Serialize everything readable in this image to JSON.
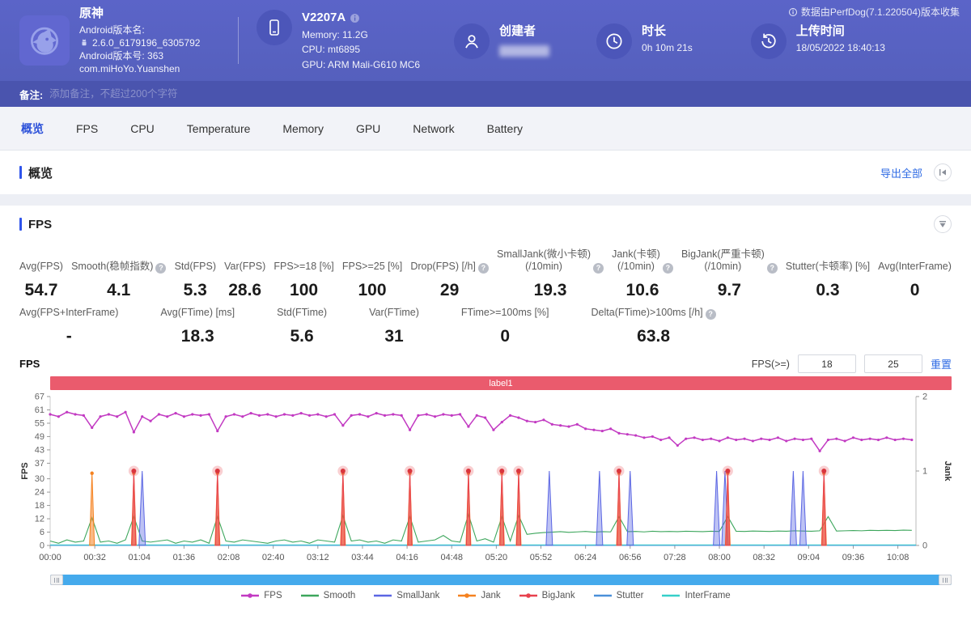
{
  "header": {
    "app": {
      "name": "原神",
      "version_label": "Android版本名:",
      "version_value": "2.6.0_6179196_6305792",
      "build_label": "Android版本号: 363",
      "package": "com.miHoYo.Yuanshen"
    },
    "device": {
      "model": "V2207A",
      "memory": "Memory: 11.2G",
      "cpu": "CPU: mt6895",
      "gpu": "GPU: ARM Mali-G610 MC6"
    },
    "creator": {
      "label": "创建者"
    },
    "duration": {
      "label": "时长",
      "value": "0h 10m 21s"
    },
    "upload": {
      "label": "上传时间",
      "value": "18/05/2022 18:40:13"
    },
    "collect_info": "数据由PerfDog(7.1.220504)版本收集"
  },
  "note_bar": {
    "label": "备注:",
    "placeholder": "添加备注，不超过200个字符"
  },
  "tabs": [
    "概览",
    "FPS",
    "CPU",
    "Temperature",
    "Memory",
    "GPU",
    "Network",
    "Battery"
  ],
  "active_tab": "概览",
  "overview": {
    "title": "概览",
    "export_label": "导出全部"
  },
  "fps_section": {
    "title": "FPS",
    "chart_label": "FPS",
    "threshold": {
      "label": "FPS(>=)",
      "input1": "18",
      "input2": "25",
      "reset": "重置"
    },
    "stats_row1": [
      {
        "label": "Avg(FPS)",
        "value": "54.7",
        "help": false
      },
      {
        "label": "Smooth(稳帧指数)",
        "value": "4.1",
        "help": true
      },
      {
        "label": "Std(FPS)",
        "value": "5.3",
        "help": false
      },
      {
        "label": "Var(FPS)",
        "value": "28.6",
        "help": false
      },
      {
        "label": "FPS>=18 [%]",
        "value": "100",
        "help": false
      },
      {
        "label": "FPS>=25 [%]",
        "value": "100",
        "help": false
      },
      {
        "label": "Drop(FPS) [/h]",
        "value": "29",
        "help": true
      },
      {
        "label": "SmallJank(微小卡顿)\n(/10min)",
        "value": "19.3",
        "help": true
      },
      {
        "label": "Jank(卡顿)\n(/10min)",
        "value": "10.6",
        "help": true
      },
      {
        "label": "BigJank(严重卡顿)\n(/10min)",
        "value": "9.7",
        "help": true
      },
      {
        "label": "Stutter(卡顿率) [%]",
        "value": "0.3",
        "help": false
      },
      {
        "label": "Avg(InterFrame)",
        "value": "0",
        "help": false
      }
    ],
    "stats_row2": [
      {
        "label": "Avg(FPS+InterFrame)",
        "value": "-",
        "help": false
      },
      {
        "label": "Avg(FTime) [ms]",
        "value": "18.3",
        "help": false
      },
      {
        "label": "Std(FTime)",
        "value": "5.6",
        "help": false
      },
      {
        "label": "Var(FTime)",
        "value": "31",
        "help": false
      },
      {
        "label": "FTime>=100ms [%]",
        "value": "0",
        "help": false
      },
      {
        "label": "Delta(FTime)>100ms [/h]",
        "value": "63.8",
        "help": true
      }
    ]
  },
  "chart_data": {
    "type": "line",
    "title": "label1",
    "ylabel_left": "FPS",
    "ylabel_right": "Jank",
    "ylim_left": [
      0,
      67
    ],
    "ylim_right": [
      0,
      2
    ],
    "y_ticks_left": [
      0,
      6,
      12,
      18,
      24,
      30,
      37,
      43,
      49,
      55,
      61,
      67
    ],
    "y_ticks_right": [
      0,
      1,
      2
    ],
    "x_ticks": [
      "00:00",
      "00:32",
      "01:04",
      "01:36",
      "02:08",
      "02:40",
      "03:12",
      "03:44",
      "04:16",
      "04:48",
      "05:20",
      "05:52",
      "06:24",
      "06:56",
      "07:28",
      "08:00",
      "08:32",
      "09:04",
      "09:36",
      "10:08"
    ],
    "duration_s": 621,
    "legend": [
      "FPS",
      "Smooth",
      "SmallJank",
      "Jank",
      "BigJank",
      "Stutter",
      "InterFrame"
    ],
    "legend_dot": [
      "FPS",
      "Jank",
      "BigJank"
    ],
    "series": {
      "fps": {
        "name": "FPS",
        "color": "#c23ac2",
        "t_step": 6,
        "values": [
          59,
          58,
          60,
          59,
          58.5,
          53,
          58,
          59,
          58,
          60,
          51,
          58,
          56,
          59,
          58,
          59.5,
          58,
          59,
          58.5,
          59,
          51.5,
          58,
          59,
          58,
          59.5,
          58.5,
          59,
          58,
          59,
          58.5,
          59.5,
          58.5,
          59,
          58,
          59,
          54,
          58.5,
          59,
          58,
          59.5,
          58.5,
          59,
          58.5,
          52,
          58.5,
          59,
          58,
          59,
          58.5,
          59,
          53.5,
          58.5,
          57.5,
          52,
          55.5,
          58.5,
          57.5,
          56,
          55.5,
          56.5,
          54.5,
          54,
          53.5,
          54.5,
          52.5,
          52,
          51.5,
          52.5,
          50.5,
          50,
          49.5,
          48.5,
          49,
          47.5,
          48.5,
          45,
          48,
          48.5,
          47.5,
          48,
          47,
          48.5,
          47.5,
          48,
          47,
          48,
          47.5,
          48.5,
          47,
          48,
          47.5,
          48,
          42.5,
          47.5,
          48,
          47,
          48.5,
          47.5,
          48,
          47.5,
          48.5,
          47.5,
          48,
          47.5
        ]
      },
      "smooth": {
        "name": "Smooth",
        "color": "#3da65c",
        "t_step": 6,
        "values": [
          2,
          1,
          2.5,
          1.5,
          2,
          12.5,
          1.5,
          2,
          1,
          2.5,
          13,
          2,
          1.5,
          2,
          2.5,
          1,
          2,
          1.5,
          2.5,
          1,
          13,
          2,
          1.5,
          2.5,
          2,
          1.5,
          1,
          2,
          2.5,
          1.5,
          2,
          1,
          2.5,
          2,
          1.5,
          13.5,
          2,
          2.5,
          1.5,
          2,
          1,
          2.5,
          2,
          13,
          1.5,
          2,
          2.5,
          4.5,
          2,
          1.5,
          14,
          2,
          3,
          1.5,
          13,
          2,
          13.5,
          5,
          5.5,
          5.8,
          6,
          6.2,
          5.9,
          6.1,
          6.3,
          6,
          6.2,
          6.1,
          13,
          6.2,
          6.3,
          6.1,
          6.4,
          6.2,
          6.3,
          6.2,
          6.4,
          6.3,
          6.2,
          6.4,
          6.3,
          13,
          6.4,
          6.3,
          6.5,
          6.4,
          6.3,
          6.5,
          6.4,
          6.6,
          6.5,
          6.4,
          6.6,
          13,
          6.5,
          6.6,
          6.7,
          6.6,
          6.8,
          6.7,
          6.8,
          6.7,
          6.9,
          6.8
        ]
      },
      "smalljank": {
        "name": "SmallJank",
        "color": "#5b66e3",
        "times_s": [
          66,
          358,
          394,
          416,
          478,
          484,
          533,
          540
        ],
        "value_jank": 1
      },
      "jank": {
        "name": "Jank",
        "color": "#f58220",
        "times_s": [
          30,
          60,
          120,
          210,
          258,
          300,
          324,
          336,
          408,
          486,
          555
        ],
        "value_jank": 0.97
      },
      "bigjank": {
        "name": "BigJank",
        "color": "#e8414d",
        "times_s": [
          60,
          120,
          210,
          258,
          300,
          324,
          336,
          408,
          486,
          555
        ],
        "value_jank": 1
      },
      "stutter": {
        "name": "Stutter",
        "color": "#4a90d9",
        "flat_value": 0
      },
      "interframe": {
        "name": "InterFrame",
        "color": "#36cfc9",
        "flat_value": 0
      }
    }
  }
}
